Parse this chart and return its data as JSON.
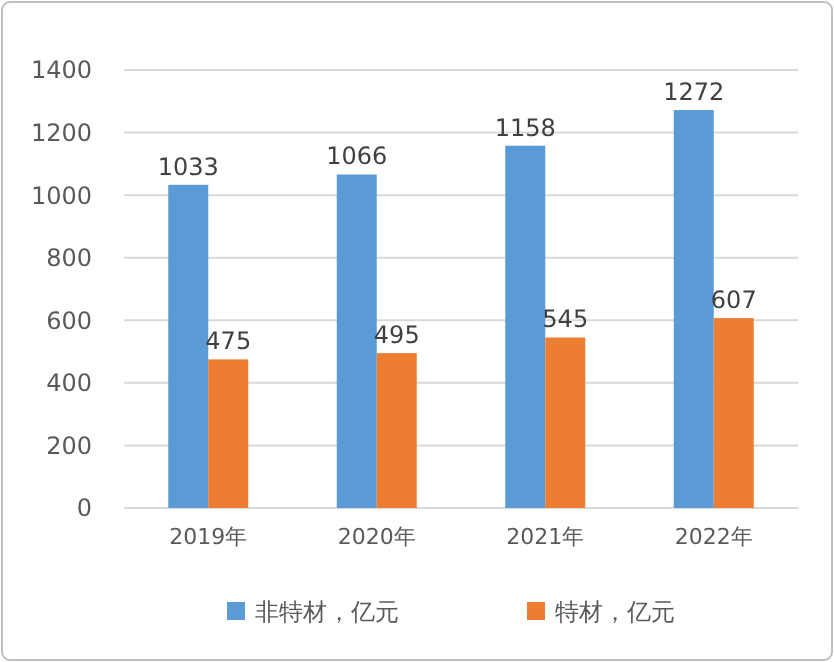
{
  "chart_data": {
    "type": "bar",
    "categories": [
      "2019年",
      "2020年",
      "2021年",
      "2022年"
    ],
    "series": [
      {
        "name": "非特材，亿元",
        "color": "#5b9bd5",
        "values": [
          1033,
          1066,
          1158,
          1272
        ]
      },
      {
        "name": "特材，亿元",
        "color": "#ed7d31",
        "values": [
          475,
          495,
          545,
          607
        ]
      }
    ],
    "ylim": [
      0,
      1400
    ],
    "yticks": [
      0,
      200,
      400,
      600,
      800,
      1000,
      1200,
      1400
    ],
    "grid": "y",
    "legend": "bottom",
    "data_labels": true
  }
}
